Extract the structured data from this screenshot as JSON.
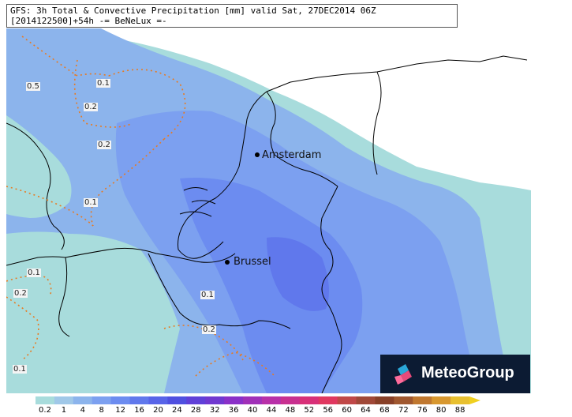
{
  "title": {
    "line1": "GFS: 3h Total & Convective Precipitation [mm] valid Sat, 27DEC2014 06Z",
    "line2": "[2014122500]+54h -= BeNeLux =-"
  },
  "cities": [
    {
      "name": "Amsterdam",
      "id": "amsterdam"
    },
    {
      "name": "Brussel",
      "id": "brussel"
    }
  ],
  "contour_labels": [
    "0.5",
    "0.1",
    "0.2",
    "0.2",
    "0.1",
    "0.1",
    "0.2",
    "0.1",
    "0.2",
    "0.1"
  ],
  "logo": {
    "text": "MeteoGroup"
  },
  "legend": {
    "values": [
      "0.2",
      "1",
      "4",
      "8",
      "12",
      "16",
      "20",
      "24",
      "28",
      "32",
      "36",
      "40",
      "44",
      "48",
      "52",
      "56",
      "60",
      "64",
      "68",
      "72",
      "76",
      "80",
      "88"
    ],
    "colors": [
      "#a8dcdc",
      "#a0c8e8",
      "#8cb4ec",
      "#7ca0f0",
      "#6c8cf0",
      "#6078ec",
      "#5864e8",
      "#5050e0",
      "#6040d8",
      "#7038d0",
      "#8a30c8",
      "#a030b8",
      "#b830a8",
      "#c83090",
      "#d83078",
      "#e03860",
      "#c04848",
      "#a04838",
      "#884028",
      "#a05830",
      "#c07830",
      "#d89830",
      "#e8c030"
    ]
  }
}
